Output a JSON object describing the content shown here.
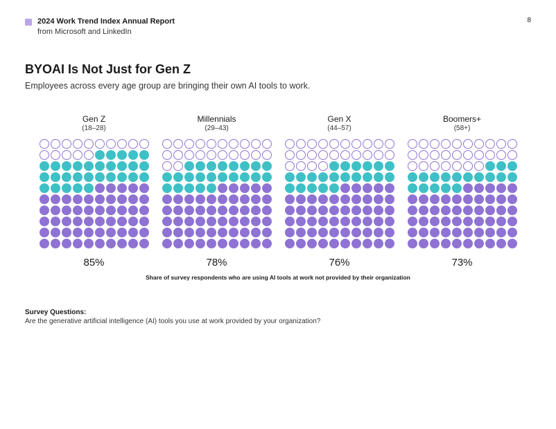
{
  "header": {
    "marker_color": "#b9a6e8",
    "title_line1": "2024 Work Trend Index Annual Report",
    "title_line2": "from Microsoft and LinkedIn",
    "page_number": "8"
  },
  "title": "BYOAI Is Not Just for Gen Z",
  "subtitle": "Employees across every age group are bringing their own AI tools to work.",
  "chart": {
    "type": "pictogram-grid",
    "grid_cols": 10,
    "grid_rows": 10,
    "icon_shape": "circle-head",
    "categories": [
      "outline",
      "teal",
      "violet"
    ],
    "colors": {
      "outline": "#8f73d4",
      "teal": "#3fc0c7",
      "violet": "#8f73d4"
    },
    "groups": [
      {
        "label": "Gen Z",
        "range": "(18–28)",
        "percent_label": "85%",
        "counts": {
          "outline": 15,
          "teal": 30,
          "violet": 55
        }
      },
      {
        "label": "Millennials",
        "range": "(29–43)",
        "percent_label": "78%",
        "counts": {
          "outline": 22,
          "teal": 23,
          "violet": 55
        }
      },
      {
        "label": "Gen X",
        "range": "(44–57)",
        "percent_label": "76%",
        "counts": {
          "outline": 24,
          "teal": 21,
          "violet": 55
        }
      },
      {
        "label": "Boomers+",
        "range": "(58+)",
        "percent_label": "73%",
        "counts": {
          "outline": 27,
          "teal": 18,
          "violet": 55
        }
      }
    ],
    "footnote": "Share of survey respondents who are using AI tools at work not provided by their organization"
  },
  "survey": {
    "label": "Survey Questions:",
    "text": "Are the generative artificial intelligence (AI) tools you use at work provided by your organization?"
  }
}
